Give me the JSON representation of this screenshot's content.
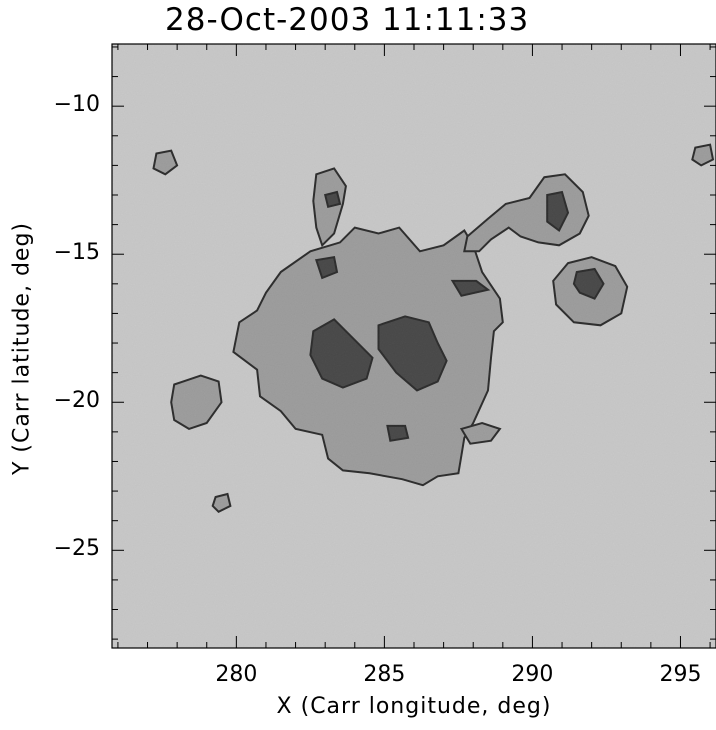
{
  "title": "28-Oct-2003 11:11:33",
  "axes": {
    "xlabel": "X (Carr longitude, deg)",
    "ylabel": "Y (Carr latitude, deg)",
    "xlim": [
      275.8,
      296.2
    ],
    "ylim": [
      -28.3,
      -7.9
    ],
    "xticks": [
      {
        "value": 280,
        "label": "280"
      },
      {
        "value": 285,
        "label": "285"
      },
      {
        "value": 290,
        "label": "290"
      },
      {
        "value": 295,
        "label": "295"
      }
    ],
    "yticks": [
      {
        "value": -10,
        "label": "−10"
      },
      {
        "value": -15,
        "label": "−15"
      },
      {
        "value": -20,
        "label": "−20"
      },
      {
        "value": -25,
        "label": "−25"
      }
    ]
  },
  "image": {
    "description_colors": {
      "background": "#e9e9e9",
      "penumbra": "#a8a8a8",
      "umbra": "#2a2a2a",
      "contour": "#000000"
    },
    "penumbra_regions": [
      {
        "name": "main-group",
        "points": [
          [
            281.5,
            -15.6
          ],
          [
            282.5,
            -14.9
          ],
          [
            283.5,
            -14.6
          ],
          [
            284.0,
            -14.1
          ],
          [
            284.8,
            -14.3
          ],
          [
            285.5,
            -14.1
          ],
          [
            286.2,
            -14.9
          ],
          [
            287.0,
            -14.7
          ],
          [
            287.7,
            -14.2
          ],
          [
            288.0,
            -14.7
          ],
          [
            288.3,
            -15.6
          ],
          [
            288.9,
            -16.5
          ],
          [
            289.0,
            -17.3
          ],
          [
            288.7,
            -17.6
          ],
          [
            288.6,
            -18.5
          ],
          [
            288.5,
            -19.6
          ],
          [
            288.0,
            -20.7
          ],
          [
            287.7,
            -21.2
          ],
          [
            287.6,
            -21.8
          ],
          [
            287.5,
            -22.4
          ],
          [
            286.8,
            -22.5
          ],
          [
            286.3,
            -22.8
          ],
          [
            285.6,
            -22.6
          ],
          [
            284.5,
            -22.4
          ],
          [
            283.6,
            -22.3
          ],
          [
            283.1,
            -21.9
          ],
          [
            282.9,
            -21.1
          ],
          [
            282.0,
            -20.9
          ],
          [
            281.5,
            -20.3
          ],
          [
            280.8,
            -19.8
          ],
          [
            280.7,
            -18.9
          ],
          [
            279.9,
            -18.3
          ],
          [
            280.1,
            -17.3
          ],
          [
            280.7,
            -16.9
          ],
          [
            281.0,
            -16.3
          ]
        ]
      },
      {
        "name": "north-spur",
        "points": [
          [
            282.7,
            -12.3
          ],
          [
            283.3,
            -12.1
          ],
          [
            283.7,
            -12.7
          ],
          [
            283.6,
            -13.3
          ],
          [
            283.3,
            -14.3
          ],
          [
            282.9,
            -14.7
          ],
          [
            282.7,
            -14.1
          ],
          [
            282.6,
            -13.2
          ]
        ]
      },
      {
        "name": "east-spot-upper",
        "points": [
          [
            289.9,
            -13.1
          ],
          [
            290.4,
            -12.4
          ],
          [
            291.1,
            -12.3
          ],
          [
            291.7,
            -12.9
          ],
          [
            291.9,
            -13.7
          ],
          [
            291.6,
            -14.3
          ],
          [
            290.9,
            -14.7
          ],
          [
            290.2,
            -14.6
          ],
          [
            289.6,
            -14.4
          ],
          [
            289.2,
            -14.1
          ],
          [
            288.6,
            -14.5
          ],
          [
            288.2,
            -14.9
          ],
          [
            287.7,
            -14.9
          ],
          [
            287.8,
            -14.4
          ],
          [
            288.5,
            -13.8
          ],
          [
            289.1,
            -13.3
          ]
        ]
      },
      {
        "name": "east-spot-lower",
        "points": [
          [
            291.2,
            -15.3
          ],
          [
            292.0,
            -15.1
          ],
          [
            292.8,
            -15.4
          ],
          [
            293.2,
            -16.1
          ],
          [
            293.0,
            -17.0
          ],
          [
            292.3,
            -17.4
          ],
          [
            291.4,
            -17.3
          ],
          [
            290.8,
            -16.7
          ],
          [
            290.7,
            -15.9
          ]
        ]
      },
      {
        "name": "west-fragment",
        "points": [
          [
            277.9,
            -19.4
          ],
          [
            278.8,
            -19.1
          ],
          [
            279.4,
            -19.3
          ],
          [
            279.5,
            -20.0
          ],
          [
            279.0,
            -20.7
          ],
          [
            278.4,
            -20.9
          ],
          [
            277.9,
            -20.6
          ],
          [
            277.8,
            -20.0
          ]
        ]
      },
      {
        "name": "northwest-pore",
        "points": [
          [
            277.3,
            -11.6
          ],
          [
            277.8,
            -11.5
          ],
          [
            278.0,
            -12.0
          ],
          [
            277.6,
            -12.3
          ],
          [
            277.2,
            -12.1
          ]
        ]
      },
      {
        "name": "northeast-pore",
        "points": [
          [
            295.5,
            -11.4
          ],
          [
            296.0,
            -11.3
          ],
          [
            296.1,
            -11.8
          ],
          [
            295.7,
            -12.0
          ],
          [
            295.4,
            -11.8
          ]
        ]
      },
      {
        "name": "southwest-pore",
        "points": [
          [
            279.3,
            -23.2
          ],
          [
            279.7,
            -23.1
          ],
          [
            279.8,
            -23.5
          ],
          [
            279.4,
            -23.7
          ],
          [
            279.2,
            -23.5
          ]
        ]
      },
      {
        "name": "southeast-fragment",
        "points": [
          [
            287.6,
            -20.9
          ],
          [
            288.3,
            -20.7
          ],
          [
            288.9,
            -20.9
          ],
          [
            288.6,
            -21.3
          ],
          [
            287.9,
            -21.4
          ]
        ]
      }
    ],
    "umbra_regions": [
      {
        "name": "umbra-west",
        "points": [
          [
            282.6,
            -17.6
          ],
          [
            283.3,
            -17.2
          ],
          [
            284.0,
            -17.9
          ],
          [
            284.6,
            -18.5
          ],
          [
            284.4,
            -19.2
          ],
          [
            283.6,
            -19.5
          ],
          [
            282.9,
            -19.2
          ],
          [
            282.5,
            -18.4
          ]
        ]
      },
      {
        "name": "umbra-center",
        "points": [
          [
            284.8,
            -17.4
          ],
          [
            285.7,
            -17.1
          ],
          [
            286.5,
            -17.3
          ],
          [
            286.8,
            -18.0
          ],
          [
            287.1,
            -18.6
          ],
          [
            286.8,
            -19.3
          ],
          [
            286.1,
            -19.6
          ],
          [
            285.4,
            -19.0
          ],
          [
            284.8,
            -18.2
          ]
        ]
      },
      {
        "name": "umbra-north",
        "points": [
          [
            283.0,
            -13.0
          ],
          [
            283.4,
            -12.9
          ],
          [
            283.5,
            -13.3
          ],
          [
            283.1,
            -13.4
          ]
        ]
      },
      {
        "name": "umbra-east-upper",
        "points": [
          [
            290.5,
            -13.0
          ],
          [
            291.0,
            -12.9
          ],
          [
            291.2,
            -13.6
          ],
          [
            290.9,
            -14.2
          ],
          [
            290.5,
            -13.9
          ]
        ]
      },
      {
        "name": "umbra-east-lower",
        "points": [
          [
            291.5,
            -15.6
          ],
          [
            292.1,
            -15.5
          ],
          [
            292.4,
            -16.0
          ],
          [
            292.1,
            -16.5
          ],
          [
            291.6,
            -16.3
          ],
          [
            291.4,
            -16.0
          ]
        ]
      },
      {
        "name": "umbra-mid-north",
        "points": [
          [
            282.7,
            -15.2
          ],
          [
            283.3,
            -15.1
          ],
          [
            283.4,
            -15.6
          ],
          [
            282.9,
            -15.8
          ]
        ]
      },
      {
        "name": "umbra-east-bar",
        "points": [
          [
            287.3,
            -15.9
          ],
          [
            288.1,
            -15.9
          ],
          [
            288.5,
            -16.2
          ],
          [
            287.6,
            -16.4
          ]
        ]
      },
      {
        "name": "umbra-south",
        "points": [
          [
            285.1,
            -20.8
          ],
          [
            285.7,
            -20.8
          ],
          [
            285.8,
            -21.2
          ],
          [
            285.2,
            -21.3
          ]
        ]
      }
    ]
  }
}
